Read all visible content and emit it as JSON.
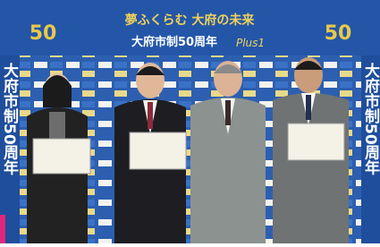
{
  "banner": {
    "slogan": "夢ふくらむ 大府の未来",
    "title": "大府市制50周年",
    "tagline": "Plus1",
    "side_text": "大府市制50周年",
    "logo": "50"
  }
}
